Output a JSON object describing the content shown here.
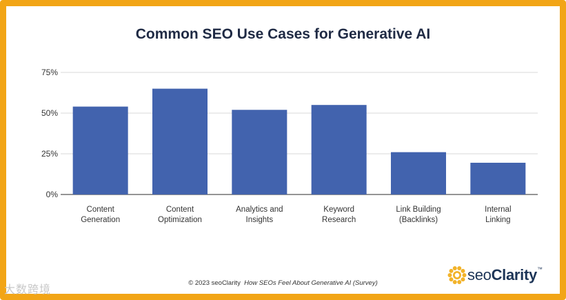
{
  "chart_data": {
    "type": "bar",
    "title": "Common SEO Use Cases for Generative AI",
    "categories": [
      [
        "Content",
        "Generation"
      ],
      [
        "Content",
        "Optimization"
      ],
      [
        "Analytics and",
        "Insights"
      ],
      [
        "Keyword",
        "Research"
      ],
      [
        "Link Building",
        "(Backlinks)"
      ],
      [
        "Internal",
        "Linking"
      ]
    ],
    "values": [
      54,
      65,
      52,
      55,
      26,
      19.5
    ],
    "ylim": [
      0,
      75
    ],
    "yticks": [
      0,
      25,
      50,
      75
    ],
    "ytick_labels": [
      "0%",
      "25%",
      "50%",
      "75%"
    ],
    "grid": true,
    "bar_color": "#4263AE"
  },
  "footer": {
    "copyright": "© 2023 seoClarity",
    "source": "How SEOs Feel About Generative AI (Survey)"
  },
  "logo": {
    "brand_light": "seo",
    "brand_bold": "Clarity",
    "tm": "™",
    "icon": "sun-logo-icon"
  },
  "watermark": "大数跨境",
  "colors": {
    "frame": "#F2A516",
    "title": "#1f2a44",
    "grid": "#d9d9d9"
  }
}
